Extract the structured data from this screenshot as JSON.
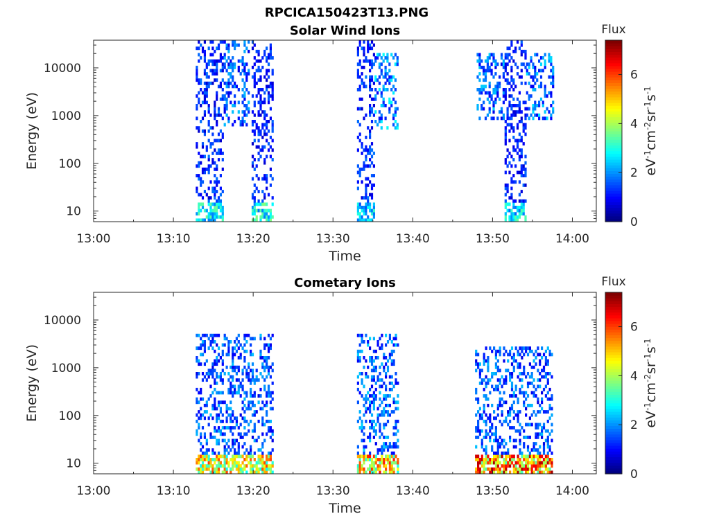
{
  "figure_title": "RPCICA150423T13.PNG",
  "chart_data": [
    {
      "type": "heatmap",
      "title": "Solar Wind Ions",
      "xlabel": "Time",
      "ylabel": "Energy (eV)",
      "x_ticks": [
        "13:00",
        "13:10",
        "13:20",
        "13:30",
        "13:40",
        "13:50",
        "14:00"
      ],
      "x_range_minutes": [
        0,
        63
      ],
      "y_scale": "log",
      "y_range": [
        6,
        38000
      ],
      "y_ticks": [
        {
          "value": 10,
          "label": "10"
        },
        {
          "value": 100,
          "label": "100"
        },
        {
          "value": 1000,
          "label": "1000"
        },
        {
          "value": 10000,
          "label": "10000"
        }
      ],
      "colorbar": {
        "title": "Flux",
        "label": "eV-1cm-2sr-1s-1",
        "range": [
          0,
          7.4
        ],
        "ticks": [
          "0",
          "2",
          "4",
          "6"
        ],
        "colormap": "jet"
      },
      "clusters": [
        {
          "time_min": 12.8,
          "time_max": 16.3,
          "energy_min": 6,
          "energy_max": 38000,
          "intensity": 1.4,
          "low_energy_peak": 3.3
        },
        {
          "time_min": 16.3,
          "time_max": 19.5,
          "energy_min": 600,
          "energy_max": 38000,
          "intensity": 1.8,
          "low_energy_peak": 0
        },
        {
          "time_min": 19.8,
          "time_max": 22.4,
          "energy_min": 6,
          "energy_max": 38000,
          "intensity": 1.3,
          "low_energy_peak": 3.4
        },
        {
          "time_min": 33.0,
          "time_max": 35.2,
          "energy_min": 6,
          "energy_max": 38000,
          "intensity": 1.4,
          "low_energy_peak": 3.0
        },
        {
          "time_min": 35.2,
          "time_max": 38.2,
          "energy_min": 500,
          "energy_max": 20000,
          "intensity": 2.2,
          "low_energy_peak": 0
        },
        {
          "time_min": 48.0,
          "time_max": 51.5,
          "energy_min": 700,
          "energy_max": 20000,
          "intensity": 1.9,
          "low_energy_peak": 0
        },
        {
          "time_min": 51.5,
          "time_max": 54.2,
          "energy_min": 6,
          "energy_max": 38000,
          "intensity": 1.3,
          "low_energy_peak": 3.2
        },
        {
          "time_min": 54.2,
          "time_max": 57.5,
          "energy_min": 700,
          "energy_max": 20000,
          "intensity": 2.0,
          "low_energy_peak": 0
        }
      ]
    },
    {
      "type": "heatmap",
      "title": "Cometary Ions",
      "xlabel": "Time",
      "ylabel": "Energy (eV)",
      "x_ticks": [
        "13:00",
        "13:10",
        "13:20",
        "13:30",
        "13:40",
        "13:50",
        "14:00"
      ],
      "x_range_minutes": [
        0,
        63
      ],
      "y_scale": "log",
      "y_range": [
        6,
        38000
      ],
      "y_ticks": [
        {
          "value": 10,
          "label": "10"
        },
        {
          "value": 100,
          "label": "100"
        },
        {
          "value": 1000,
          "label": "1000"
        },
        {
          "value": 10000,
          "label": "10000"
        }
      ],
      "colorbar": {
        "title": "Flux",
        "label": "eV-1cm-2sr-1s-1",
        "range": [
          0,
          7.4
        ],
        "ticks": [
          "0",
          "2",
          "4",
          "6"
        ],
        "colormap": "jet"
      },
      "clusters": [
        {
          "time_min": 12.8,
          "time_max": 22.4,
          "energy_min": 6,
          "energy_max": 5000,
          "intensity": 1.8,
          "low_energy_peak": 5.5
        },
        {
          "time_min": 33.0,
          "time_max": 38.2,
          "energy_min": 6,
          "energy_max": 5000,
          "intensity": 1.9,
          "low_energy_peak": 5.8
        },
        {
          "time_min": 47.8,
          "time_max": 57.5,
          "energy_min": 6,
          "energy_max": 3000,
          "intensity": 1.8,
          "low_energy_peak": 6.5
        }
      ]
    }
  ]
}
